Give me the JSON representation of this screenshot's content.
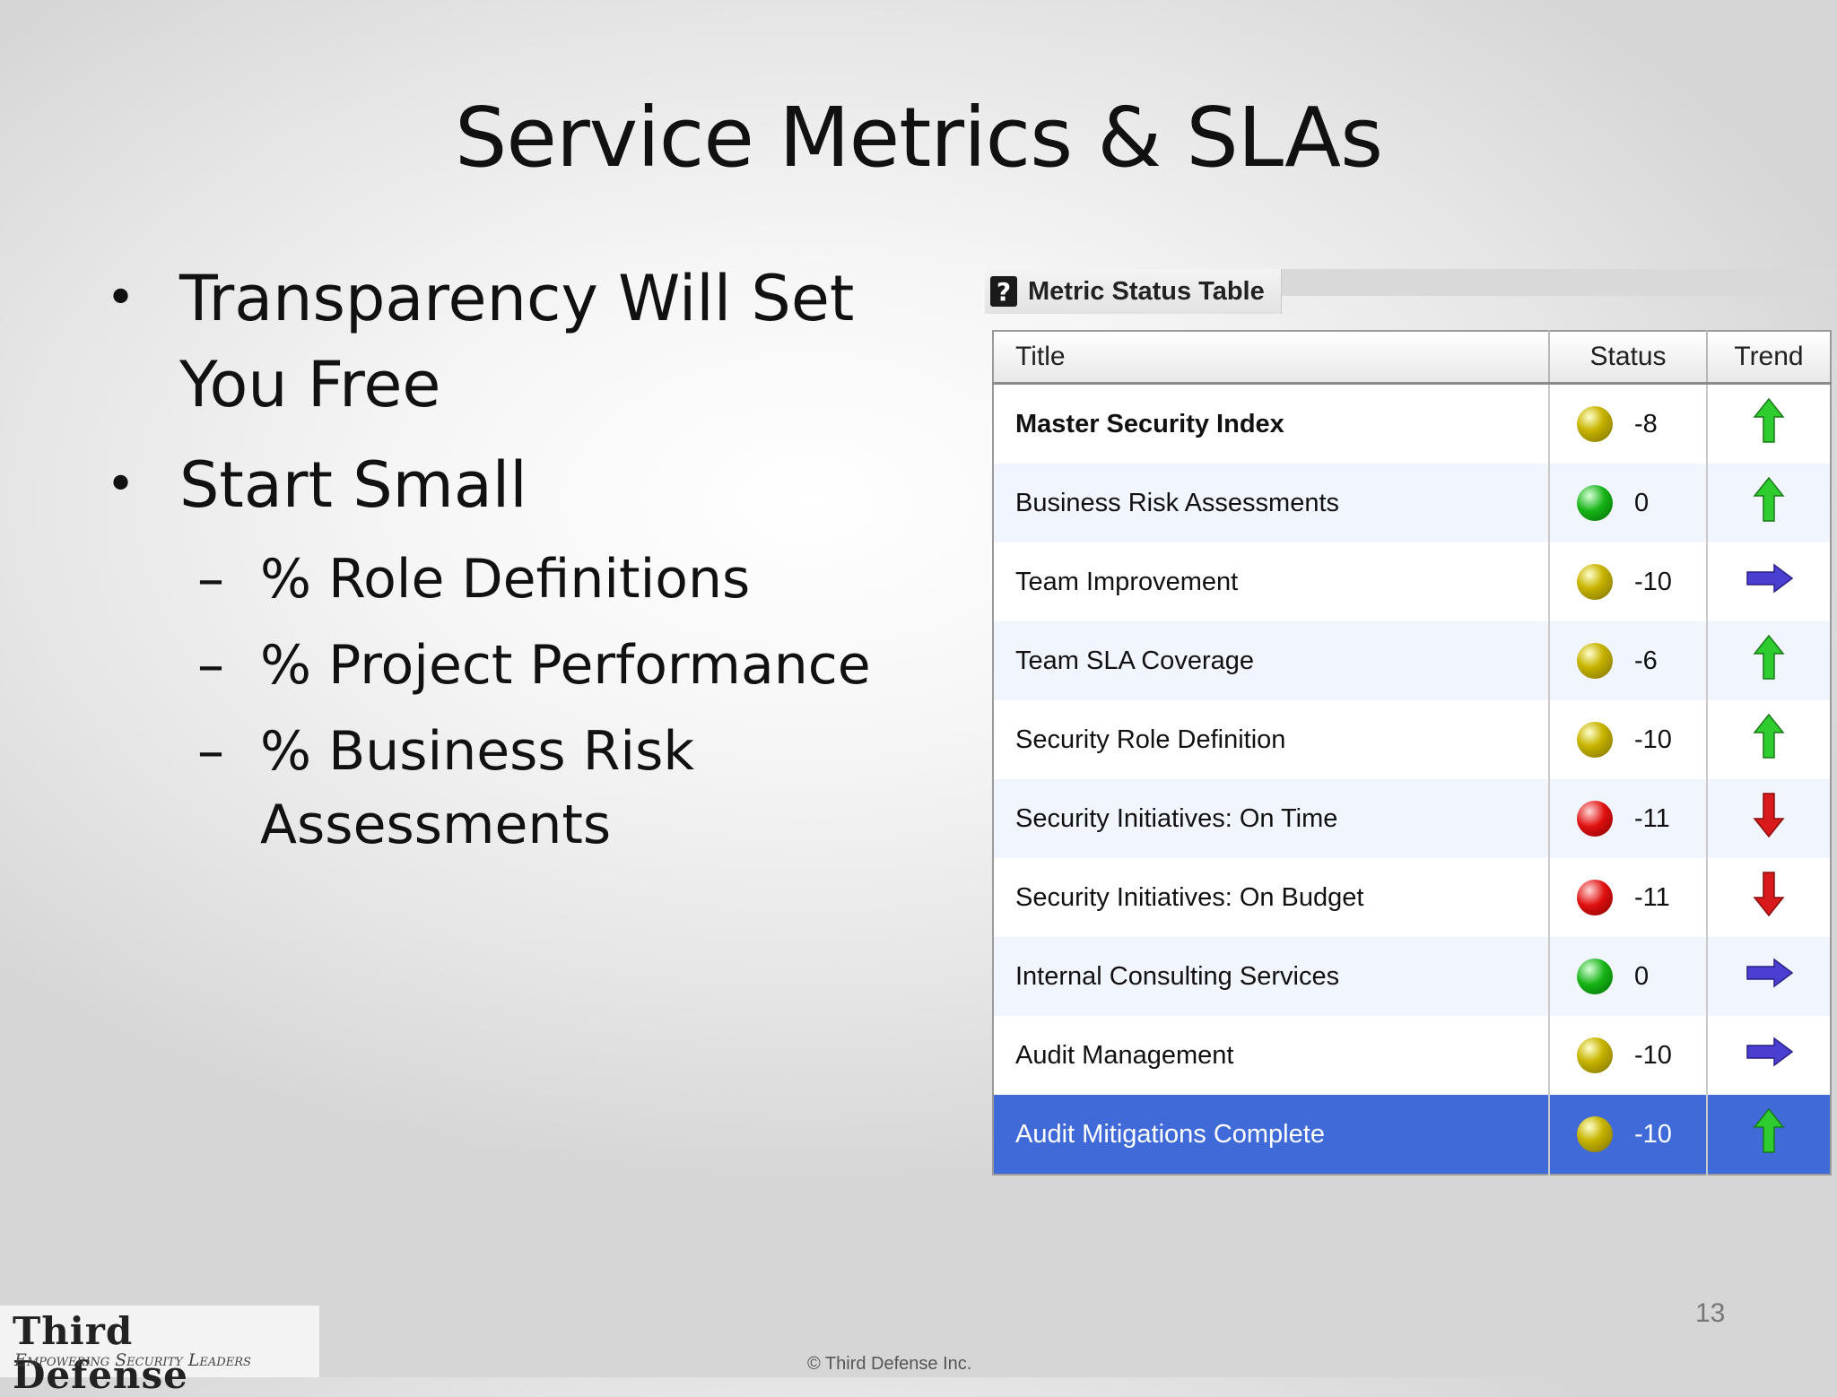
{
  "slide": {
    "title": "Service Metrics & SLAs",
    "bullets": [
      {
        "text": "Transparency Will Set You Free"
      },
      {
        "text": "Start Small",
        "sub": [
          "% Role Definitions",
          "% Project Performance",
          "% Business Risk Assessments"
        ]
      }
    ],
    "page_number": "13",
    "copyright": "© Third Defense Inc."
  },
  "logo": {
    "name": "Third Defense",
    "tagline": "Empowering Security Leaders"
  },
  "metric_panel": {
    "title": "Metric Status Table",
    "help_icon": "question-mark-icon",
    "columns": [
      "Title",
      "Status",
      "Trend"
    ],
    "rows": [
      {
        "title": "Master Security Index",
        "status": "yellow",
        "value": "-8",
        "trend": "up",
        "bold": true
      },
      {
        "title": "Business Risk Assessments",
        "status": "green",
        "value": "0",
        "trend": "up"
      },
      {
        "title": "Team Improvement",
        "status": "yellow",
        "value": "-10",
        "trend": "right"
      },
      {
        "title": "Team SLA Coverage",
        "status": "yellow",
        "value": "-6",
        "trend": "up"
      },
      {
        "title": "Security Role Definition",
        "status": "yellow",
        "value": "-10",
        "trend": "up"
      },
      {
        "title": "Security Initiatives: On Time",
        "status": "red",
        "value": "-11",
        "trend": "down"
      },
      {
        "title": "Security Initiatives: On Budget",
        "status": "red",
        "value": "-11",
        "trend": "down"
      },
      {
        "title": "Internal Consulting Services",
        "status": "green",
        "value": "0",
        "trend": "right"
      },
      {
        "title": "Audit Management",
        "status": "yellow",
        "value": "-10",
        "trend": "right"
      },
      {
        "title": "Audit Mitigations Complete",
        "status": "yellow",
        "value": "-10",
        "trend": "up",
        "selected": true
      }
    ]
  },
  "colors": {
    "selected_row": "#3f6ad8",
    "alt_row": "#f1f5fd",
    "arrow_up": "#2ecc2e",
    "arrow_down": "#d81a1a",
    "arrow_right": "#4a3fd0"
  }
}
